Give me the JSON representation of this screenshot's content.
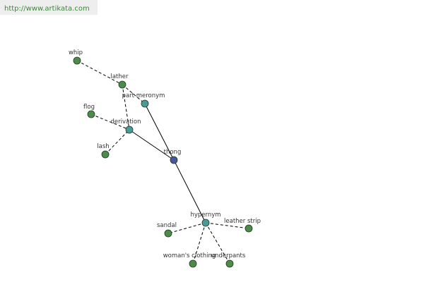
{
  "header": {
    "url": "http://www.artikata.com"
  },
  "nodes": [
    {
      "label": "whip"
    },
    {
      "label": "lather"
    },
    {
      "label": "part meronym"
    },
    {
      "label": "flog"
    },
    {
      "label": "derivation"
    },
    {
      "label": "lash"
    },
    {
      "label": "thong"
    },
    {
      "label": "hypernym"
    },
    {
      "label": "sandal"
    },
    {
      "label": "leather strip"
    },
    {
      "label": "woman's clothing"
    },
    {
      "label": "underpants"
    }
  ]
}
